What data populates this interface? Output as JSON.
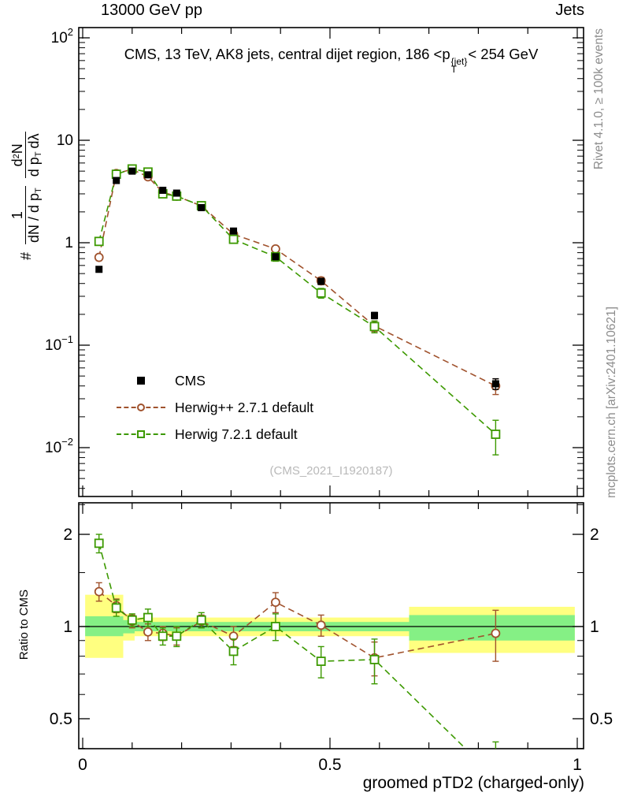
{
  "header": {
    "left": "13000 GeV pp",
    "right": "Jets"
  },
  "panel_title": {
    "prefix": "CMS, 13 TeV, AK8 jets, central dijet region, 186 <",
    "symbol": "p",
    "sup": "{jet}",
    "sub": "T",
    "suffix": "< 254 GeV"
  },
  "watermark": "(CMS_2021_I1920187)",
  "side_labels": {
    "rivet": "Rivet 4.1.0, ≥ 100k events",
    "mcplots": "mcplots.cern.ch [arXiv:2401.10621]"
  },
  "y_axis_main": {
    "hash": "#",
    "f1num": "1",
    "f1den": "dN / d p",
    "f1densub": "T",
    "f2num_a": "d",
    "f2num_sup": "2",
    "f2num_b": "N",
    "f2den_a": "d p",
    "f2den_sub": "T",
    "f2den_b": "dλ"
  },
  "y_axis_ratio": "Ratio to CMS",
  "x_axis_title": "groomed pTD2 (charged-only)",
  "legend": [
    {
      "label": "CMS",
      "marker": "square-filled",
      "color": "#000000"
    },
    {
      "label": "Herwig++ 2.7.1 default",
      "marker": "circle-open",
      "color": "#a0522d"
    },
    {
      "label": "Herwig 7.2.1 default",
      "marker": "square-open",
      "color": "#3c9900"
    }
  ],
  "band_colors": {
    "outer": "#ffff80",
    "inner": "#85f085"
  },
  "chart_data": {
    "type": "line",
    "title": "CMS, 13 TeV, AK8 jets, central dijet region, 186 < pT{jet} < 254 GeV",
    "xlabel": "groomed pTD2 (charged-only)",
    "ylabel_main": "# 1/(dN/dpT) d2N/(dpT dλ)",
    "ylabel_ratio": "Ratio to CMS",
    "legend_position": "inside-left-bottom",
    "grid": false,
    "x": [
      0.033,
      0.068,
      0.1,
      0.132,
      0.162,
      0.19,
      0.24,
      0.305,
      0.39,
      0.482,
      0.59,
      0.835
    ],
    "series": [
      {
        "name": "CMS",
        "color": "#000000",
        "marker": "square-filled",
        "line": "none",
        "y": [
          0.55,
          4.05,
          5.0,
          4.6,
          3.25,
          3.05,
          2.2,
          1.3,
          0.73,
          0.42,
          0.195,
          0.042
        ],
        "yerr": [
          0.03,
          0.18,
          0.18,
          0.18,
          0.14,
          0.13,
          0.1,
          0.07,
          0.045,
          0.028,
          0.014,
          0.005
        ]
      },
      {
        "name": "Herwig++ 2.7.1 default",
        "color": "#a0522d",
        "marker": "circle-open",
        "line": "dashed",
        "y": [
          0.72,
          4.74,
          5.2,
          4.4,
          3.1,
          2.85,
          2.29,
          1.21,
          0.87,
          0.425,
          0.154,
          0.04
        ],
        "yerr": [
          0.05,
          0.2,
          0.2,
          0.2,
          0.15,
          0.14,
          0.11,
          0.08,
          0.06,
          0.035,
          0.018,
          0.007
        ]
      },
      {
        "name": "Herwig 7.2.1 default",
        "color": "#3c9900",
        "marker": "square-open",
        "line": "dashed",
        "y": [
          1.03,
          4.66,
          5.25,
          4.9,
          3.0,
          2.85,
          2.3,
          1.08,
          0.73,
          0.323,
          0.152,
          0.0135
        ],
        "yerr": [
          0.08,
          0.25,
          0.25,
          0.25,
          0.18,
          0.16,
          0.12,
          0.09,
          0.07,
          0.035,
          0.02,
          0.005
        ]
      }
    ],
    "ratio": {
      "reference": 1.0,
      "series": [
        {
          "name": "Herwig++ 2.7.1 default",
          "color": "#a0522d",
          "marker": "circle-open",
          "line": "dashed",
          "y": [
            1.3,
            1.17,
            1.04,
            0.96,
            0.95,
            0.93,
            1.04,
            0.93,
            1.2,
            1.01,
            0.79,
            0.95
          ],
          "yerr": [
            0.09,
            0.06,
            0.05,
            0.06,
            0.05,
            0.06,
            0.05,
            0.07,
            0.09,
            0.08,
            0.1,
            0.18
          ]
        },
        {
          "name": "Herwig 7.2.1 default",
          "color": "#3c9900",
          "marker": "square-open",
          "line": "dashed",
          "y": [
            1.87,
            1.15,
            1.05,
            1.07,
            0.93,
            0.93,
            1.05,
            0.83,
            1.0,
            0.77,
            0.78,
            0.32
          ],
          "yerr": [
            0.13,
            0.07,
            0.05,
            0.07,
            0.06,
            0.07,
            0.06,
            0.08,
            0.1,
            0.09,
            0.13,
            0.1
          ]
        }
      ],
      "bands": [
        {
          "x0": 0.005,
          "x1": 0.082,
          "outer": [
            0.79,
            1.27
          ],
          "inner": [
            0.93,
            1.08
          ]
        },
        {
          "x0": 0.082,
          "x1": 0.105,
          "outer": [
            0.9,
            1.1
          ],
          "inner": [
            0.95,
            1.05
          ]
        },
        {
          "x0": 0.105,
          "x1": 0.66,
          "outer": [
            0.93,
            1.07
          ],
          "inner": [
            0.965,
            1.035
          ]
        },
        {
          "x0": 0.66,
          "x1": 0.995,
          "outer": [
            0.82,
            1.16
          ],
          "inner": [
            0.9,
            1.09
          ]
        }
      ]
    },
    "axes": {
      "x": {
        "min": 0,
        "max": 1,
        "minor_step": 0.1,
        "majors": [
          {
            "v": 0,
            "l": "0"
          },
          {
            "v": 0.5,
            "l": "0.5"
          },
          {
            "v": 1,
            "l": "1"
          }
        ]
      },
      "y_main": {
        "scale": "log",
        "min": 0.0033,
        "max": 126,
        "majors": [
          {
            "v": 100,
            "t": "10",
            "e": "2"
          },
          {
            "v": 10,
            "t": "10",
            "e": ""
          },
          {
            "v": 1,
            "t": "1",
            "e": ""
          },
          {
            "v": 0.1,
            "t": "10",
            "e": "−1"
          },
          {
            "v": 0.01,
            "t": "10",
            "e": "−2"
          }
        ]
      },
      "y_ratio": {
        "scale": "log",
        "min": 0.398,
        "max": 2.53,
        "majors": [
          {
            "v": 2,
            "l": "2"
          },
          {
            "v": 1,
            "l": "1"
          },
          {
            "v": 0.5,
            "l": "0.5"
          }
        ],
        "minors": [
          0.4,
          0.6,
          0.7,
          0.8,
          0.9,
          1.5,
          2.5
        ]
      }
    }
  }
}
